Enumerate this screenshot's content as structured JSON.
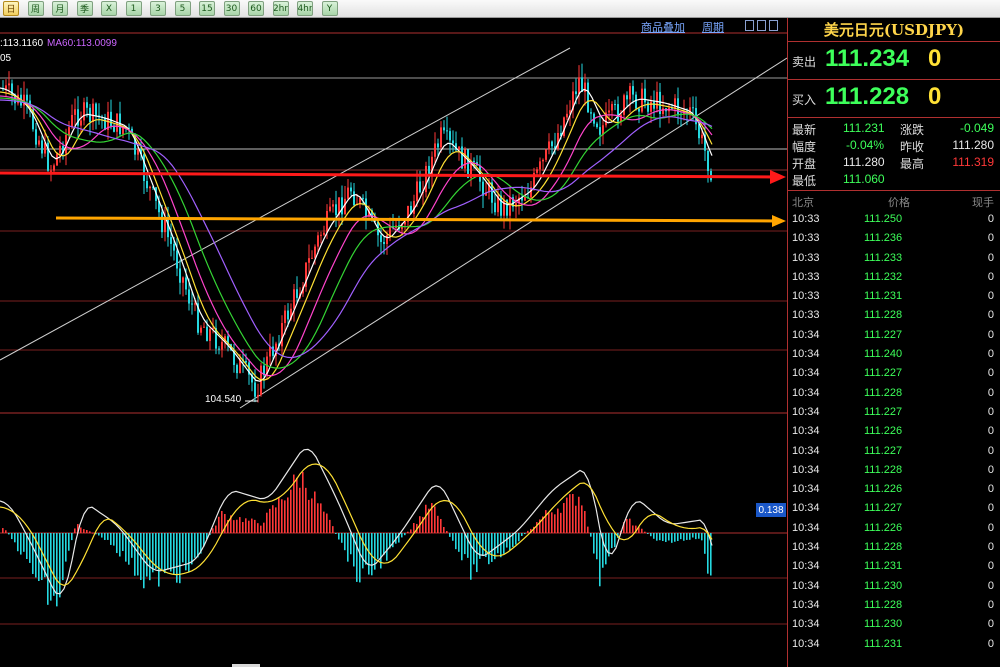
{
  "toolbar": {
    "buttons": [
      {
        "label": "日",
        "active": true
      },
      {
        "label": "周"
      },
      {
        "label": "月"
      },
      {
        "label": "季"
      },
      {
        "label": "X"
      },
      {
        "label": "1"
      },
      {
        "label": "3"
      },
      {
        "label": "5"
      },
      {
        "label": "15"
      },
      {
        "label": "30"
      },
      {
        "label": "60"
      },
      {
        "label": "2hr"
      },
      {
        "label": "4hr"
      },
      {
        "label": "Y"
      }
    ]
  },
  "chart_header": {
    "ma_legend": [
      {
        "text": ":113.1160",
        "color": "#ffffff"
      },
      {
        "text": "MA60:113.0099",
        "color": "#cc66ff"
      }
    ],
    "overlay_link": "商品叠加",
    "period_link": "周期",
    "partial_price": "05"
  },
  "chart": {
    "low_label": "104.540",
    "macd_value": "0.138"
  },
  "colors": {
    "up": "#ff3838",
    "down": "#25d8e0",
    "ma_white": "#ffffff",
    "ma_yellow": "#ffe135",
    "ma_pink": "#ff44cc",
    "ma_green": "#34d534",
    "ma_purple": "#a060ff",
    "arrow_red": "#ff1a1a",
    "arrow_orange": "#ffa500",
    "price_green": "#3dff5a",
    "accent_yellow": "#ffe135"
  },
  "quote": {
    "title": "美元日元(USDJPY)",
    "sell_label": "卖出",
    "sell_price": "111.234",
    "sell_tail": "0",
    "buy_label": "买入",
    "buy_price": "111.228",
    "buy_tail": "0",
    "stats": {
      "latest_label": "最新",
      "latest": "111.231",
      "change_label": "涨跌",
      "change": "-0.049",
      "amp_label": "幅度",
      "amp": "-0.04%",
      "prev_label": "昨收",
      "prev": "111.280",
      "open_label": "开盘",
      "open": "111.280",
      "high_label": "最高",
      "high": "111.319",
      "low_label": "最低",
      "low": "111.060"
    },
    "ticks_header": {
      "time": "北京",
      "price": "价格",
      "vol": "现手"
    },
    "ticks": [
      {
        "time": "10:33",
        "price": "111.250",
        "vol": "0"
      },
      {
        "time": "10:33",
        "price": "111.236",
        "vol": "0"
      },
      {
        "time": "10:33",
        "price": "111.233",
        "vol": "0"
      },
      {
        "time": "10:33",
        "price": "111.232",
        "vol": "0"
      },
      {
        "time": "10:33",
        "price": "111.231",
        "vol": "0"
      },
      {
        "time": "10:33",
        "price": "111.228",
        "vol": "0"
      },
      {
        "time": "10:34",
        "price": "111.227",
        "vol": "0"
      },
      {
        "time": "10:34",
        "price": "111.240",
        "vol": "0"
      },
      {
        "time": "10:34",
        "price": "111.227",
        "vol": "0"
      },
      {
        "time": "10:34",
        "price": "111.228",
        "vol": "0"
      },
      {
        "time": "10:34",
        "price": "111.227",
        "vol": "0"
      },
      {
        "time": "10:34",
        "price": "111.226",
        "vol": "0"
      },
      {
        "time": "10:34",
        "price": "111.227",
        "vol": "0"
      },
      {
        "time": "10:34",
        "price": "111.228",
        "vol": "0"
      },
      {
        "time": "10:34",
        "price": "111.226",
        "vol": "0"
      },
      {
        "time": "10:34",
        "price": "111.227",
        "vol": "0"
      },
      {
        "time": "10:34",
        "price": "111.226",
        "vol": "0"
      },
      {
        "time": "10:34",
        "price": "111.228",
        "vol": "0"
      },
      {
        "time": "10:34",
        "price": "111.231",
        "vol": "0"
      },
      {
        "time": "10:34",
        "price": "111.230",
        "vol": "0"
      },
      {
        "time": "10:34",
        "price": "111.228",
        "vol": "0"
      },
      {
        "time": "10:34",
        "price": "111.230",
        "vol": "0"
      },
      {
        "time": "10:34",
        "price": "111.231",
        "vol": "0"
      }
    ]
  }
}
